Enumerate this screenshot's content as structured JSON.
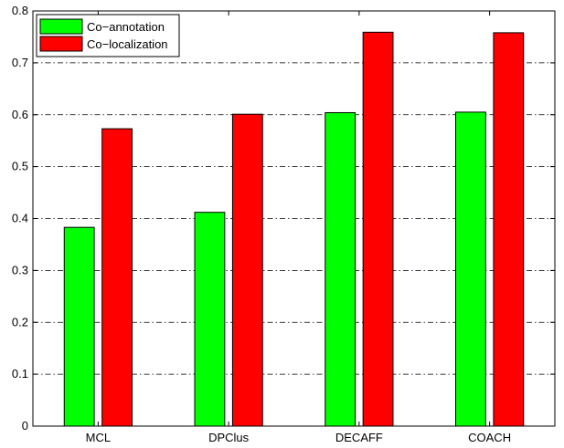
{
  "chart_data": {
    "type": "bar",
    "title": "",
    "xlabel": "",
    "ylabel": "",
    "categories": [
      "MCL",
      "DPClus",
      "DECAFF",
      "COACH"
    ],
    "series": [
      {
        "name": "Co−annotation",
        "color": "#00ff00",
        "values": [
          0.383,
          0.412,
          0.604,
          0.605
        ]
      },
      {
        "name": "Co−localization",
        "color": "#ff0000",
        "values": [
          0.573,
          0.601,
          0.759,
          0.758
        ]
      }
    ],
    "ylim": [
      0,
      0.8
    ],
    "yticks": [
      "0",
      "0.1",
      "0.2",
      "0.3",
      "0.4",
      "0.5",
      "0.6",
      "0.7",
      "0.8"
    ],
    "grid": "horizontal dash-dot",
    "legend": "top-left"
  }
}
